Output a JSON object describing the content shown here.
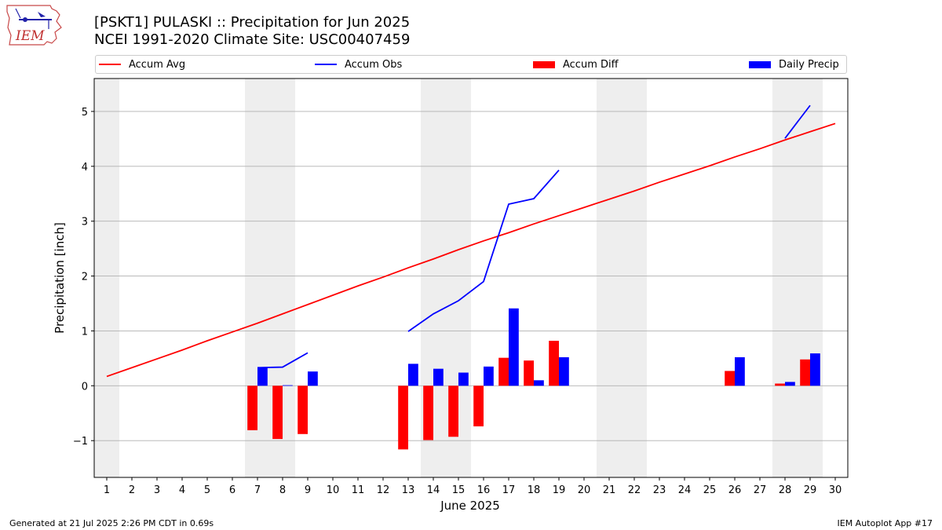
{
  "header": {
    "title": "[PSKT1] PULASKI :: Precipitation for Jun 2025",
    "subtitle": "NCEI 1991-2020 Climate Site: USC00407459",
    "logo_text": "IEM"
  },
  "footer": {
    "generated": "Generated at 21 Jul 2025 2:26 PM CDT in 0.69s",
    "app": "IEM Autoplot App #17"
  },
  "colors": {
    "avg": "#ff0000",
    "obs": "#0000ff",
    "diff": "#ff0000",
    "daily": "#0000ff",
    "weekend_band": "#eeeeee",
    "grid": "#b0b0b0"
  },
  "chart_data": {
    "type": "bar",
    "xlabel": "June 2025",
    "ylabel": "Precipitation [inch]",
    "xlim": [
      0.5,
      30.5
    ],
    "ylim": [
      -1.67,
      5.6
    ],
    "x_ticks": [
      1,
      2,
      3,
      4,
      5,
      6,
      7,
      8,
      9,
      10,
      11,
      12,
      13,
      14,
      15,
      16,
      17,
      18,
      19,
      20,
      21,
      22,
      23,
      24,
      25,
      26,
      27,
      28,
      29,
      30
    ],
    "y_ticks": [
      -1,
      0,
      1,
      2,
      3,
      4,
      5
    ],
    "grid": "horizontal",
    "legend_placement": "top",
    "shaded_weekend_days": [
      1,
      7,
      8,
      14,
      15,
      21,
      22,
      28,
      29
    ],
    "x": [
      1,
      2,
      3,
      4,
      5,
      6,
      7,
      8,
      9,
      10,
      11,
      12,
      13,
      14,
      15,
      16,
      17,
      18,
      19,
      20,
      21,
      22,
      23,
      24,
      25,
      26,
      27,
      28,
      29,
      30
    ],
    "series": [
      {
        "name": "Accum Avg",
        "kind": "line",
        "values": [
          0.17,
          0.33,
          0.49,
          0.65,
          0.82,
          0.98,
          1.14,
          1.31,
          1.48,
          1.65,
          1.82,
          1.98,
          2.15,
          2.31,
          2.48,
          2.64,
          2.79,
          2.95,
          3.1,
          3.25,
          3.4,
          3.55,
          3.71,
          3.86,
          4.01,
          4.17,
          4.32,
          4.48,
          4.63,
          4.78
        ]
      },
      {
        "name": "Accum Obs",
        "kind": "line",
        "values": [
          null,
          null,
          null,
          null,
          null,
          null,
          0.33,
          0.34,
          0.6,
          null,
          null,
          null,
          0.99,
          1.31,
          1.55,
          1.9,
          3.31,
          3.41,
          3.93,
          null,
          null,
          null,
          null,
          null,
          null,
          null,
          null,
          4.51,
          5.11,
          null
        ]
      },
      {
        "name": "Accum Diff",
        "kind": "bar",
        "values": [
          null,
          null,
          null,
          null,
          null,
          null,
          -0.81,
          -0.97,
          -0.88,
          null,
          null,
          null,
          -1.16,
          -0.99,
          -0.93,
          -0.74,
          0.51,
          0.46,
          0.82,
          null,
          null,
          null,
          null,
          null,
          null,
          0.27,
          null,
          0.04,
          0.48,
          null
        ]
      },
      {
        "name": "Daily Precip",
        "kind": "bar",
        "values": [
          null,
          null,
          null,
          null,
          null,
          null,
          0.33,
          0.01,
          0.26,
          null,
          null,
          null,
          0.4,
          0.31,
          0.24,
          0.35,
          1.41,
          0.1,
          0.52,
          null,
          null,
          null,
          null,
          null,
          null,
          0.52,
          null,
          0.07,
          0.59,
          null
        ]
      }
    ]
  }
}
